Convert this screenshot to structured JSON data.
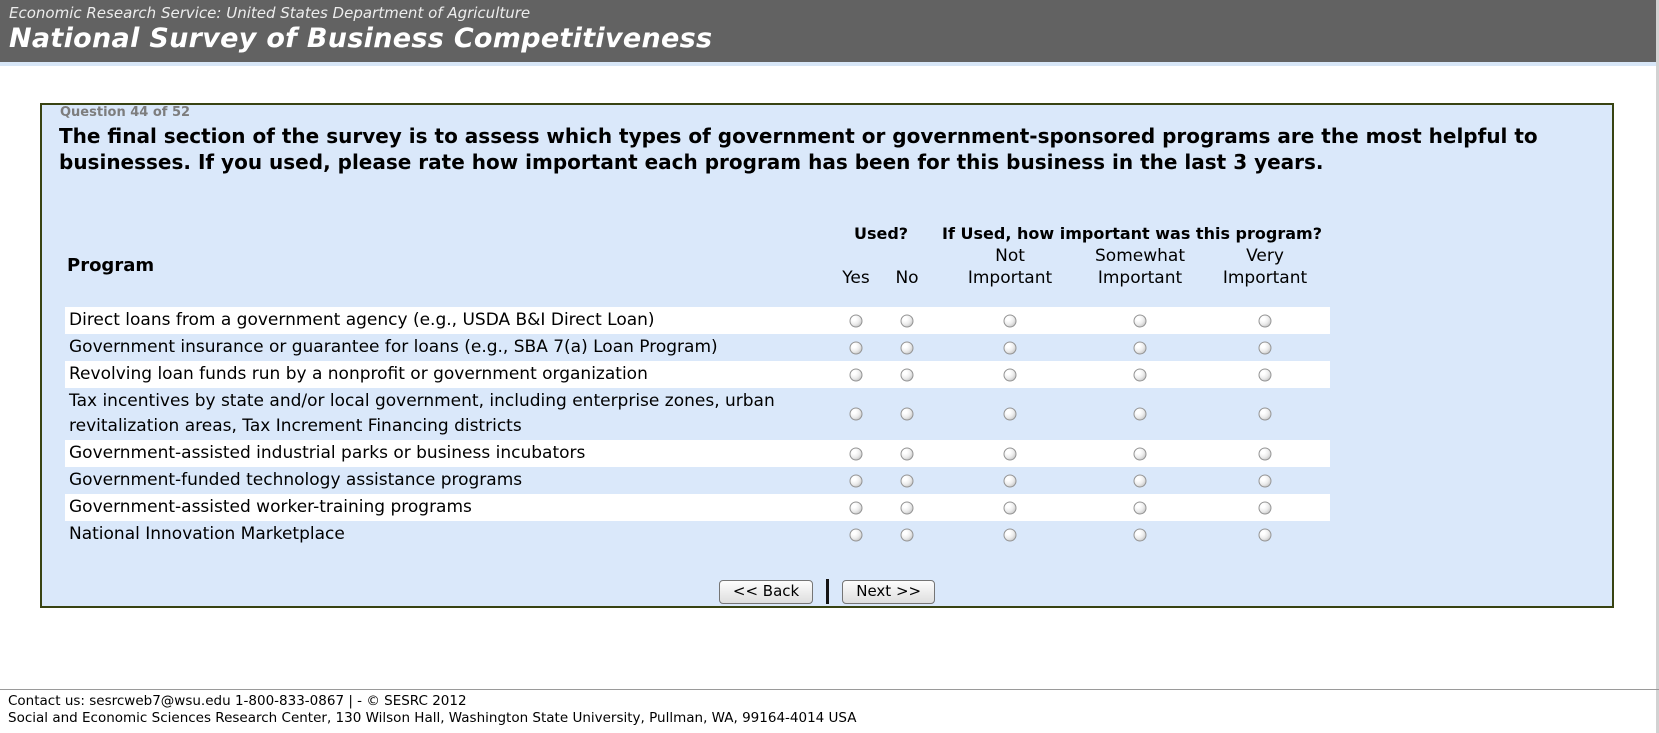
{
  "header": {
    "agency_line": "Economic Research Service: United States Department of Agriculture",
    "title": "National Survey of Business Competitiveness"
  },
  "survey": {
    "progress": "Question 44 of 52",
    "question": "The final section of the survey is to assess which types of government or government-sponsored programs are the most helpful to businesses. If you used, please rate how important each program has been for this business in the last 3 years.",
    "table": {
      "program_header": "Program",
      "used_header": "Used?",
      "importance_header": "If Used, how important was this program?",
      "col_labels": {
        "yes": "Yes",
        "no": "No",
        "not_top": "Not",
        "somewhat_top": "Somewhat",
        "very_top": "Very",
        "important": "Important"
      },
      "radio_options": [
        "Yes",
        "No",
        "Not Important",
        "Somewhat Important",
        "Very Important"
      ],
      "radio_state": "all-unselected",
      "rows": [
        {
          "label": "Direct loans from a government agency (e.g., USDA B&I Direct Loan)"
        },
        {
          "label": "Government insurance or guarantee for loans (e.g., SBA 7(a) Loan Program)"
        },
        {
          "label": "Revolving loan funds run by a nonprofit or government organization"
        },
        {
          "label": "Tax incentives by state and/or local government, including enterprise zones, urban revitalization areas, Tax Increment Financing districts"
        },
        {
          "label": "Government-assisted industrial parks or business incubators"
        },
        {
          "label": "Government-funded technology assistance programs"
        },
        {
          "label": "Government-assisted worker-training programs"
        },
        {
          "label": "National Innovation Marketplace"
        }
      ]
    },
    "buttons": {
      "back_label": "<< Back",
      "next_label": "Next >>"
    }
  },
  "footer": {
    "line1": "Contact us: sesrcweb7@wsu.edu 1-800-833-0867 | - © SESRC 2012",
    "line2": "Social and Economic Sciences Research Center, 130 Wilson Hall, Washington State University, Pullman, WA, 99164-4014 USA"
  },
  "colors": {
    "header_bg": "#626262",
    "panel_bg": "#dae8fa",
    "panel_border": "#384312",
    "stripe": "#ffffff",
    "strip_blue": "#d7e6f7"
  }
}
